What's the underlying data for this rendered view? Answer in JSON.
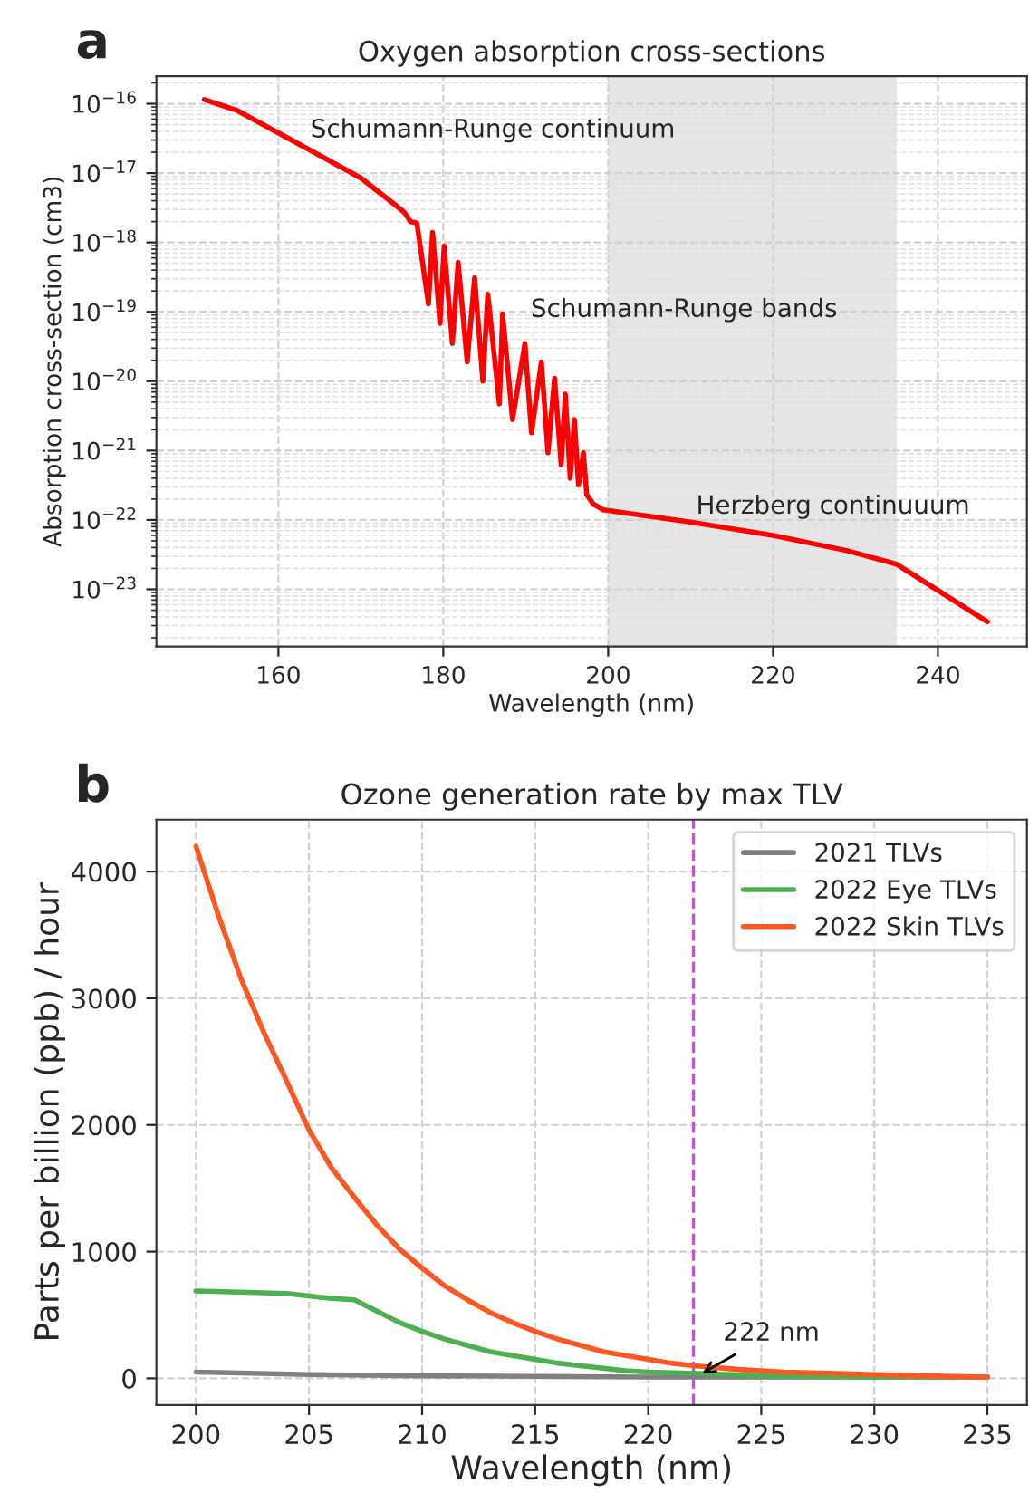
{
  "chart_data": [
    {
      "type": "line",
      "title": "Oxygen absorption cross-sections",
      "xlabel": "Wavelength (nm)",
      "ylabel": "Absorption cross-section (cm3)",
      "log": "y",
      "xlim": [
        145.2,
        250.8
      ],
      "xticks": [
        160,
        180,
        200,
        220,
        240
      ],
      "ylim": [
        1.5e-24,
        2.5e-16
      ],
      "yticks": [
        {
          "value": 1e-16,
          "label": "10$^{−16}$"
        },
        {
          "value": 1e-17,
          "label": "10$^{−17}$"
        },
        {
          "value": 1e-18,
          "label": "10$^{−18}$"
        },
        {
          "value": 1e-19,
          "label": "10$^{−19}$"
        },
        {
          "value": 1e-20,
          "label": "10$^{−20}$"
        },
        {
          "value": 1e-21,
          "label": "10$^{−21}$"
        },
        {
          "value": 1e-22,
          "label": "10$^{−22}$"
        },
        {
          "value": 1e-23,
          "label": "10$^{−23}$"
        }
      ],
      "grid": true,
      "legend": false,
      "bands": [
        {
          "axis": "x",
          "from": 200,
          "to": 235,
          "color": "#e6e6e6"
        }
      ],
      "series": [
        {
          "color": "#ff0000",
          "x": [
            151,
            155,
            160,
            165,
            170,
            174,
            175.3,
            176,
            176.8,
            178.2,
            178.7,
            179.6,
            180.1,
            181.1,
            181.8,
            182.9,
            183.8,
            184.8,
            185.4,
            186.8,
            187.2,
            188.4,
            189.9,
            190.7,
            191.9,
            192.7,
            193.5,
            194.3,
            194.8,
            195.4,
            195.9,
            196.4,
            197.0,
            197.4,
            198.2,
            199.4,
            210,
            220,
            229,
            235,
            246
          ],
          "values": [
            1.15e-16,
            8e-17,
            3.8e-17,
            1.8e-17,
            8.5e-18,
            3.6e-18,
            2.7e-18,
            2e-18,
            1.9e-18,
            1.3e-19,
            1.4e-18,
            6.8e-20,
            8.9e-19,
            3.5e-20,
            5.2e-19,
            1.9e-20,
            3.1e-19,
            1e-20,
            1.8e-19,
            4.7e-21,
            9.3e-20,
            2.8e-21,
            3.5e-20,
            1.8e-21,
            1.9e-20,
            9.3e-22,
            1.1e-20,
            6.2e-22,
            6.5e-21,
            4e-22,
            2.8e-21,
            3.2e-22,
            9.3e-22,
            2.3e-22,
            1.7e-22,
            1.4e-22,
            9.3e-23,
            6e-23,
            3.6e-23,
            2.3e-23,
            3.4e-24
          ]
        }
      ],
      "annotations": [
        "a",
        "Schumann-Runge continuum",
        "Schumann-Runge bands",
        "Herzberg continuuum"
      ]
    },
    {
      "type": "line",
      "title": "Ozone generation rate by max TLV",
      "xlabel": "Wavelength (nm)",
      "ylabel": "Parts per billion (ppb) / hour",
      "xlim": [
        198.25,
        236.75
      ],
      "xticks": [
        200,
        205,
        210,
        215,
        220,
        225,
        230,
        235
      ],
      "ylim": [
        -210,
        4410
      ],
      "yticks": [
        0,
        1000,
        2000,
        3000,
        4000
      ],
      "grid": true,
      "legend": "top right",
      "ref_lines": [
        {
          "axis": "x",
          "value": 222,
          "color": "#b45ad6",
          "line_style": "dashed"
        }
      ],
      "series": [
        {
          "name": "2021 TLVs",
          "color": "#808080",
          "x": [
            200,
            205,
            210,
            220,
            235
          ],
          "values": [
            50,
            30,
            20,
            10,
            10
          ]
        },
        {
          "name": "2022 Eye TLVs",
          "color": "#4caf50",
          "x": [
            200,
            202,
            204,
            205,
            206,
            207,
            208,
            209,
            210,
            211,
            212,
            213,
            214,
            215,
            216,
            217,
            218,
            219,
            220,
            222,
            225,
            230,
            235
          ],
          "values": [
            690,
            680,
            670,
            650,
            630,
            620,
            530,
            440,
            370,
            310,
            260,
            210,
            180,
            150,
            120,
            100,
            80,
            60,
            50,
            40,
            20,
            10,
            10
          ]
        },
        {
          "name": "2022 Skin TLVs",
          "color": "#ff5722",
          "x": [
            200,
            201,
            202,
            203,
            204,
            205,
            206,
            207,
            208,
            209,
            210,
            211,
            212,
            213,
            214,
            215,
            216,
            217,
            218,
            219,
            220,
            221,
            222,
            224,
            226,
            228,
            230,
            232,
            235
          ],
          "values": [
            4200,
            3650,
            3150,
            2730,
            2350,
            1960,
            1660,
            1430,
            1210,
            1020,
            870,
            730,
            620,
            520,
            440,
            370,
            310,
            260,
            210,
            180,
            150,
            120,
            100,
            70,
            50,
            40,
            30,
            20,
            10
          ]
        }
      ],
      "annotations": [
        "b",
        {
          "text": "222 nm",
          "x": 222.2,
          "y": 20
        }
      ]
    }
  ]
}
